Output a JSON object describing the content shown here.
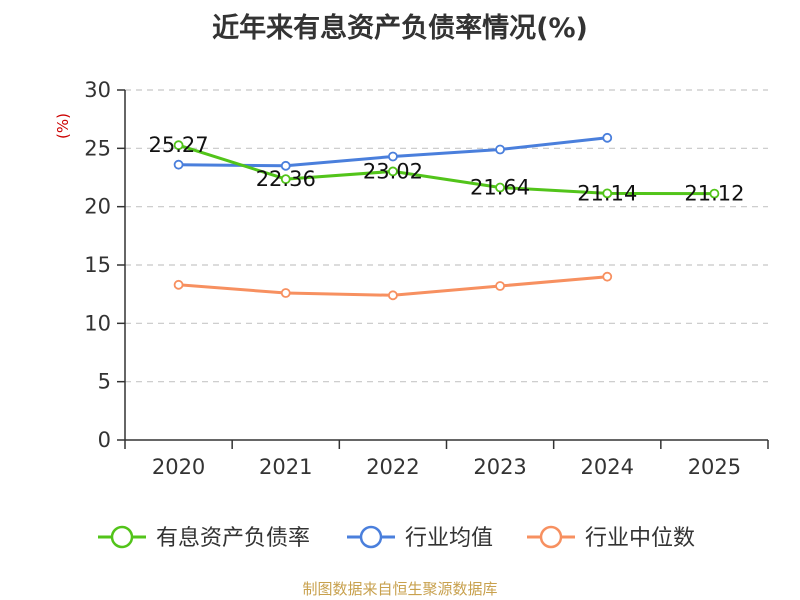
{
  "chart_data": {
    "type": "line",
    "title": "近年来有息资产负债率情况(%)",
    "ylabel": "(%)",
    "xlabel": "",
    "categories": [
      "2020",
      "2021",
      "2022",
      "2023",
      "2024",
      "2025"
    ],
    "ylim": [
      0,
      30
    ],
    "yticks": [
      0,
      5,
      10,
      15,
      20,
      25,
      30
    ],
    "grid": true,
    "legend_position": "bottom",
    "series": [
      {
        "name": "有息资产负债率",
        "color": "#52c41a",
        "values": [
          25.27,
          22.36,
          23.02,
          21.64,
          21.14,
          21.12
        ],
        "data_labels": [
          "25.27",
          "22.36",
          "23.02",
          "21.64",
          "21.14",
          "21.12"
        ]
      },
      {
        "name": "行业均值",
        "color": "#4a7fdc",
        "values": [
          23.6,
          23.5,
          24.3,
          24.9,
          25.9,
          null
        ]
      },
      {
        "name": "行业中位数",
        "color": "#f79060",
        "values": [
          13.3,
          12.6,
          12.4,
          13.2,
          14.0,
          null
        ]
      }
    ]
  },
  "footer": {
    "source": "制图数据来自恒生聚源数据库"
  }
}
